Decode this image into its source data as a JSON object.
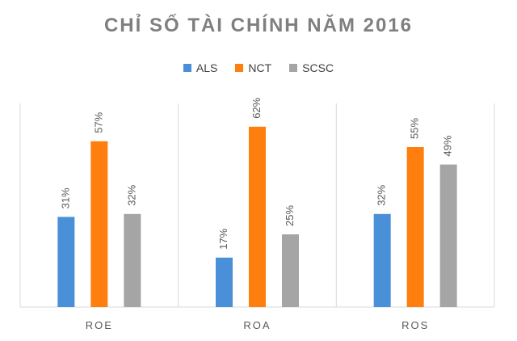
{
  "chart_data": {
    "type": "bar",
    "title": "CHỈ SỐ TÀI CHÍNH NĂM 2016",
    "xlabel": "",
    "ylabel": "",
    "categories": [
      "ROE",
      "ROA",
      "ROS"
    ],
    "series": [
      {
        "name": "ALS",
        "color": "#4a90d9",
        "values": [
          31,
          17,
          32
        ],
        "labels": [
          "31%",
          "17%",
          "32%"
        ]
      },
      {
        "name": "NCT",
        "color": "#ff7f0e",
        "values": [
          57,
          62,
          55
        ],
        "labels": [
          "57%",
          "62%",
          "55%"
        ]
      },
      {
        "name": "SCSC",
        "color": "#a5a5a5",
        "values": [
          32,
          25,
          49
        ],
        "labels": [
          "32%",
          "25%",
          "49%"
        ]
      }
    ],
    "ylim": [
      0,
      70
    ],
    "grid": false,
    "legend": "top",
    "category_separators": true
  }
}
